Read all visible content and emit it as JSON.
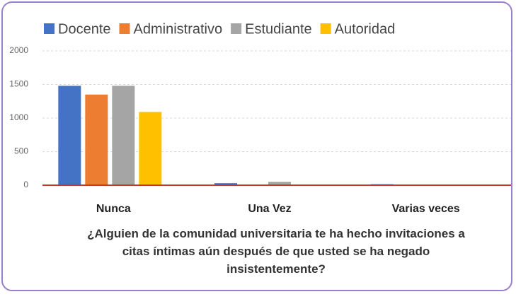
{
  "chart_data": {
    "type": "bar",
    "title": "¿Alguien de la comunidad universitaria te ha hecho invitaciones a citas íntimas aún después de que usted se ha negado insistentemente?",
    "categories": [
      "Nunca",
      "Una Vez",
      "Varias veces"
    ],
    "series": [
      {
        "name": "Docente",
        "color": "#4472c4",
        "values": [
          1480,
          30,
          15
        ]
      },
      {
        "name": "Administrativo",
        "color": "#ed7d31",
        "values": [
          1350,
          10,
          5
        ]
      },
      {
        "name": "Estudiante",
        "color": "#a5a5a5",
        "values": [
          1480,
          50,
          3
        ]
      },
      {
        "name": "Autoridad",
        "color": "#ffc000",
        "values": [
          1090,
          5,
          2
        ]
      }
    ],
    "ylim": [
      0,
      2000
    ],
    "yticks": [
      0,
      500,
      1000,
      1500,
      2000
    ],
    "grid": true
  }
}
